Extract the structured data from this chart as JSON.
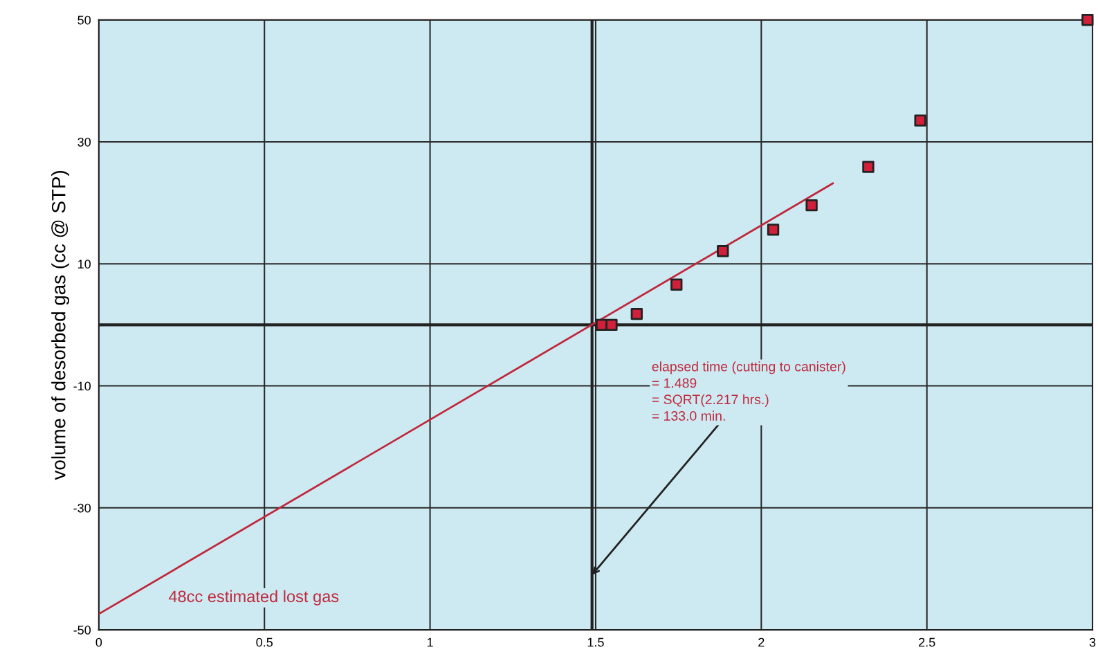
{
  "chart_data": {
    "type": "scatter",
    "ylabel": "volume of desorbed gas (cc @ STP)",
    "x": [
      1.518,
      1.548,
      1.624,
      1.744,
      1.884,
      2.036,
      2.152,
      2.323,
      2.48,
      2.985
    ],
    "series": [
      {
        "color": "#d0203a",
        "values": [
          0,
          0,
          1.8,
          6.6,
          12.1,
          15.6,
          19.6,
          25.9,
          33.5,
          50
        ]
      },
      {
        "type": "line",
        "marker": "none",
        "color": "#c0283c",
        "x": [
          0,
          2.216
        ],
        "values": [
          -47.4,
          23.2
        ]
      }
    ],
    "xlim": [
      0,
      3
    ],
    "xticks": [
      0,
      0.5,
      1,
      1.5,
      2,
      2.5,
      3
    ],
    "ylim": [
      -50,
      50
    ],
    "yticks": [
      -50,
      -30,
      -10,
      10,
      30,
      50
    ],
    "ref_lines": [
      {
        "axis": "x",
        "value": 1.489,
        "color": "#222222"
      },
      {
        "axis": "y",
        "value": 0,
        "color": "#222222"
      }
    ],
    "annotations": [
      {
        "text": "elapsed time (cutting to canister)\n= 1.489\n= SQRT(2.217 hrs.)\n= 133.0 min.",
        "x": 1.489,
        "y": -41
      },
      "48cc estimated lost gas"
    ],
    "grid": true,
    "marker": "square"
  }
}
